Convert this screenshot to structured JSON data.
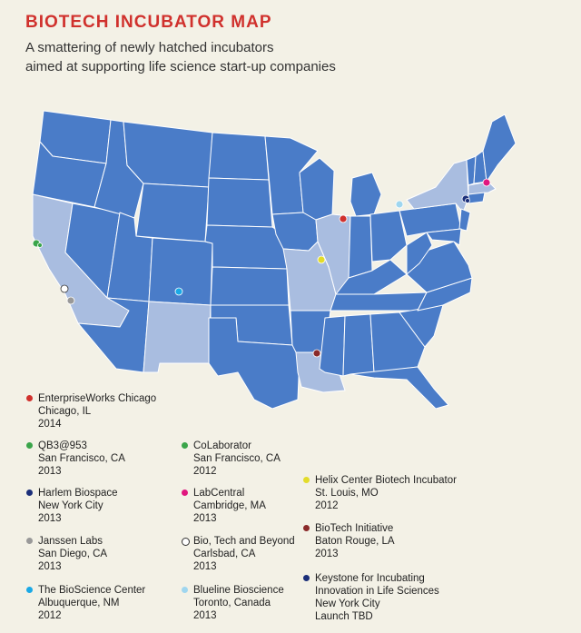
{
  "header": {
    "title": "BIOTECH INCUBATOR MAP",
    "subtitle_line1": "A smattering of newly hatched incubators",
    "subtitle_line2": "aimed at supporting life science start-up companies"
  },
  "colors": {
    "background": "#f3f1e6",
    "title": "#d0312d",
    "state_default": "#4a7cc8",
    "state_highlight": "#a9bde0",
    "state_border": "#ffffff"
  },
  "highlighted_states": [
    "California",
    "New Mexico",
    "Missouri",
    "Illinois",
    "Louisiana",
    "New York",
    "Massachusetts"
  ],
  "legend": [
    {
      "name": "EnterpriseWorks Chicago",
      "place": "Chicago, IL",
      "year": "2014",
      "color": "#d0312d"
    },
    {
      "name": "QB3@953",
      "place": "San Francisco, CA",
      "year": "2013",
      "color": "#3aa54a"
    },
    {
      "name": "CoLaborator",
      "place": "San Francisco, CA",
      "year": "2012",
      "color": "#3aa54a"
    },
    {
      "name": "Harlem Biospace",
      "place": "New York City",
      "year": "2013",
      "color": "#1b2f7a"
    },
    {
      "name": "LabCentral",
      "place": "Cambridge, MA",
      "year": "2013",
      "color": "#e0177f"
    },
    {
      "name": "Helix Center Biotech Incubator",
      "place": "St. Louis, MO",
      "year": "2012",
      "color": "#e3dc2a"
    },
    {
      "name": "Janssen Labs",
      "place": "San Diego, CA",
      "year": "2013",
      "color": "#999999"
    },
    {
      "name": "Bio, Tech and Beyond",
      "place": "Carlsbad, CA",
      "year": "2013",
      "color": "#ffffff"
    },
    {
      "name": "BioTech Initiative",
      "place": "Baton Rouge, LA",
      "year": "2013",
      "color": "#8a2a2a"
    },
    {
      "name": "The BioScience Center",
      "place": "Albuquerque, NM",
      "year": "2012",
      "color": "#1aa9e6"
    },
    {
      "name": "Blueline Bioscience",
      "place": "Toronto, Canada",
      "year": "2013",
      "color": "#9fd6ef"
    },
    {
      "name": "Keystone for Incubating",
      "name2": "Innovation in Life Sciences",
      "place": "New York City",
      "year": "Launch TBD",
      "color": "#1b2f7a"
    }
  ]
}
